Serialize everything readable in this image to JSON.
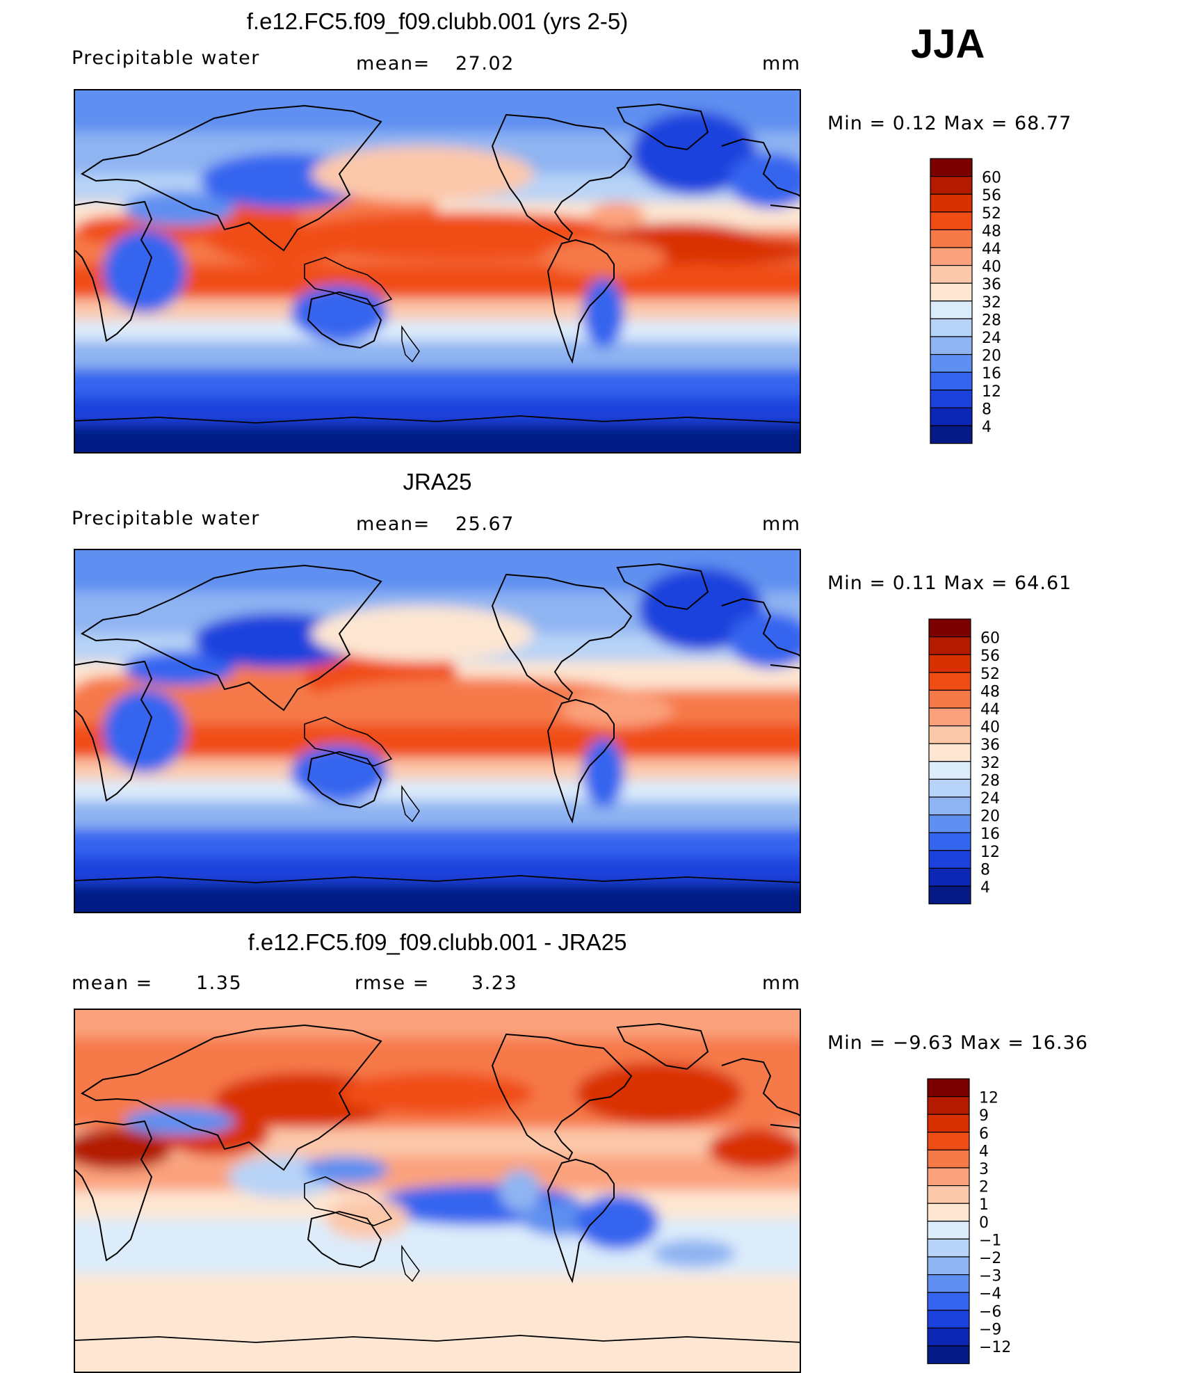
{
  "season": "JJA",
  "panels": [
    {
      "id": "model",
      "title": "f.e12.FC5.f09_f09.clubb.001 (yrs 2-5)",
      "left_label": "Precipitable  water",
      "stat_label": "mean=",
      "stat_value": "27.02",
      "extra_label": "",
      "extra_value": "",
      "units": "mm",
      "min_label": "Min  =",
      "min_value": "0.12",
      "max_label": "Max  =",
      "max_value": "68.77",
      "min_max_text": "Min  =     0.12  Max  =    68.77"
    },
    {
      "id": "obs",
      "title": "JRA25",
      "left_label": "Precipitable  water",
      "stat_label": "mean=",
      "stat_value": "25.67",
      "extra_label": "",
      "extra_value": "",
      "units": "mm",
      "min_max_text": "Min  =     0.11  Max  =    64.61"
    },
    {
      "id": "diff",
      "title": "f.e12.FC5.f09_f09.clubb.001 - JRA25",
      "left_label": "mean  =",
      "stat_label": "",
      "stat_value": "1.35",
      "extra_label": "rmse  =",
      "extra_value": "3.23",
      "units": "mm",
      "min_max_text": "Min  =   −9.63  Max  =    16.36"
    }
  ],
  "colorbars": {
    "abs": {
      "labels": [
        "60",
        "56",
        "52",
        "48",
        "44",
        "40",
        "36",
        "32",
        "28",
        "24",
        "20",
        "16",
        "12",
        "8",
        "4"
      ],
      "colors": [
        "#7d0000",
        "#b31a00",
        "#d93000",
        "#f04d14",
        "#f6794a",
        "#fba27d",
        "#fcc8aa",
        "#fde6d2",
        "#dcecfb",
        "#b7d3f7",
        "#8fb4f2",
        "#5f8ff0",
        "#3565ef",
        "#1c42dd",
        "#0c26b5",
        "#051a84"
      ]
    },
    "diff": {
      "labels": [
        "12",
        "9",
        "6",
        "4",
        "3",
        "2",
        "1",
        "0",
        "−1",
        "−2",
        "−3",
        "−4",
        "−6",
        "−9",
        "−12"
      ],
      "colors": [
        "#7d0000",
        "#b31a00",
        "#d93000",
        "#f04d14",
        "#f6794a",
        "#fba27d",
        "#fcc8aa",
        "#fde6d2",
        "#dcecfb",
        "#b7d3f7",
        "#8fb4f2",
        "#5f8ff0",
        "#3565ef",
        "#1c42dd",
        "#0c26b5",
        "#051a84"
      ]
    }
  },
  "chart_data": [
    {
      "type": "heatmap",
      "title": "f.e12.FC5.f09_f09.clubb.001 (yrs 2-5)",
      "variable": "Precipitable water",
      "units": "mm",
      "mean": 27.02,
      "min": 0.12,
      "max": 68.77,
      "contour_levels": [
        4,
        8,
        12,
        16,
        20,
        24,
        28,
        32,
        36,
        40,
        44,
        48,
        52,
        56,
        60
      ]
    },
    {
      "type": "heatmap",
      "title": "JRA25",
      "variable": "Precipitable water",
      "units": "mm",
      "mean": 25.67,
      "min": 0.11,
      "max": 64.61,
      "contour_levels": [
        4,
        8,
        12,
        16,
        20,
        24,
        28,
        32,
        36,
        40,
        44,
        48,
        52,
        56,
        60
      ]
    },
    {
      "type": "heatmap",
      "title": "f.e12.FC5.f09_f09.clubb.001 - JRA25",
      "units": "mm",
      "mean": 1.35,
      "rmse": 3.23,
      "min": -9.63,
      "max": 16.36,
      "contour_levels": [
        -12,
        -9,
        -6,
        -4,
        -3,
        -2,
        -1,
        0,
        1,
        2,
        3,
        4,
        6,
        9,
        12
      ]
    }
  ]
}
